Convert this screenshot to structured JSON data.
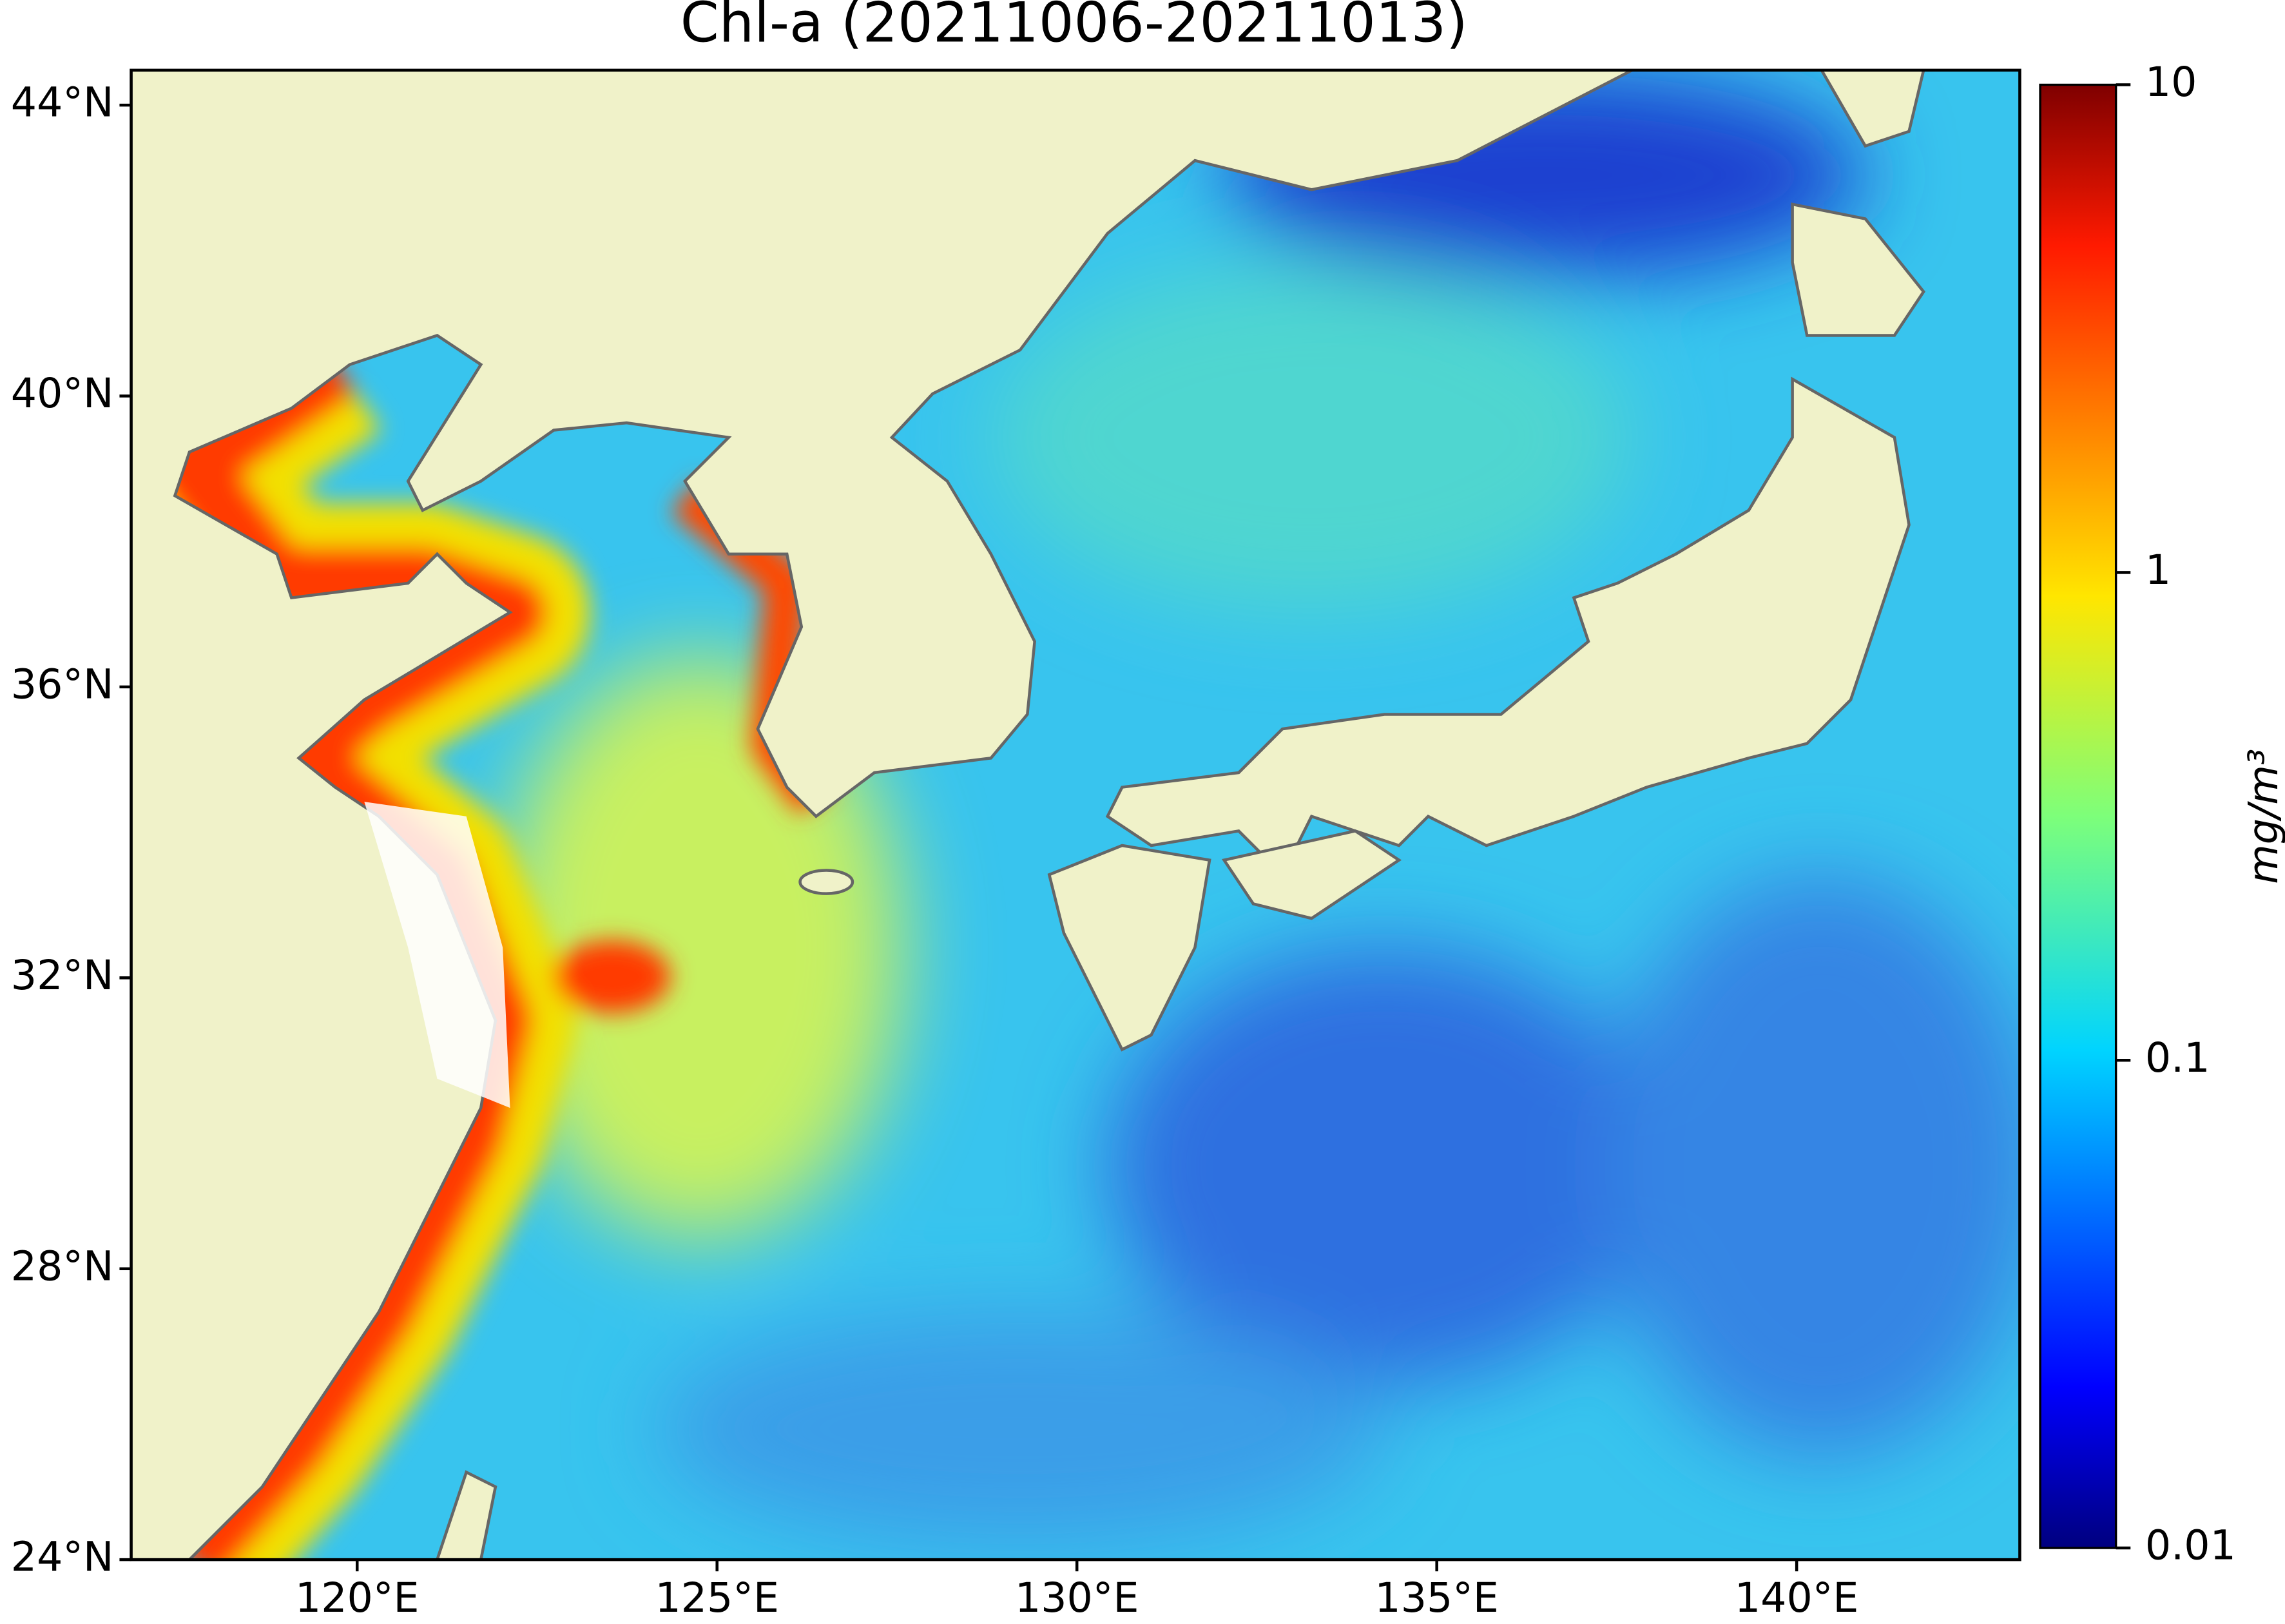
{
  "title": "Chl-a (20211006-20211013)",
  "map": {
    "xlim": [
      116.86,
      143.1
    ],
    "ylim": [
      24,
      44.48
    ],
    "xticks": [
      {
        "value": 120,
        "label": "120°E"
      },
      {
        "value": 125,
        "label": "125°E"
      },
      {
        "value": 130,
        "label": "130°E"
      },
      {
        "value": 135,
        "label": "135°E"
      },
      {
        "value": 140,
        "label": "140°E"
      }
    ],
    "yticks": [
      {
        "value": 24,
        "label": "24°N"
      },
      {
        "value": 28,
        "label": "28°N"
      },
      {
        "value": 32,
        "label": "32°N"
      },
      {
        "value": 36,
        "label": "36°N"
      },
      {
        "value": 40,
        "label": "40°N"
      },
      {
        "value": 44,
        "label": "44°N"
      }
    ]
  },
  "colorbar": {
    "scale": "log",
    "lim": [
      0.01,
      10
    ],
    "ticks": [
      0.01,
      0.1,
      1,
      10
    ],
    "label": "mg/m³",
    "colormap": "jet"
  }
}
